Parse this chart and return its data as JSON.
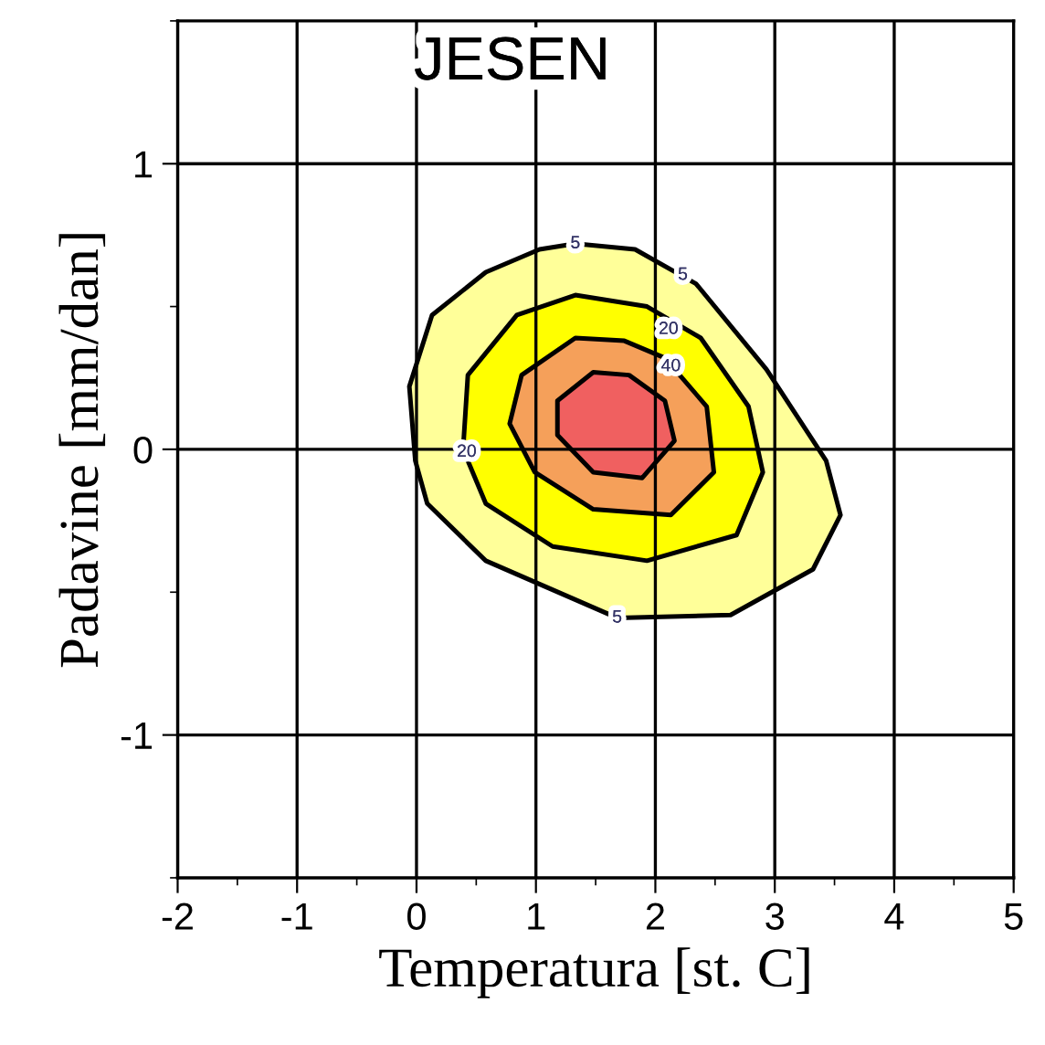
{
  "chart_data": {
    "type": "area",
    "title": "JESEN",
    "xlabel": "Temperatura [st. C]",
    "ylabel": "Padavine [mm/dan]",
    "xlim": [
      -2,
      5
    ],
    "ylim": [
      -1.5,
      1.5
    ],
    "xticks": [
      -2,
      {
        "value": -1.5,
        "label": null
      },
      -1,
      {
        "value": -0.5,
        "label": null
      },
      0,
      {
        "value": 0.5,
        "label": null
      },
      1,
      {
        "value": 1.5,
        "label": null
      },
      2,
      {
        "value": 2.5,
        "label": null
      },
      3,
      {
        "value": 3.5,
        "label": null
      },
      4,
      {
        "value": 4.5,
        "label": null
      },
      5
    ],
    "yticks": [
      {
        "value": -1.5,
        "label": null
      },
      -1,
      {
        "value": -0.5,
        "label": null
      },
      0,
      {
        "value": 0.5,
        "label": null
      },
      1,
      {
        "value": 1.5,
        "label": null
      }
    ],
    "grid": true,
    "series": [
      {
        "color": "#ffff99",
        "x": [
          1.33,
          1.83,
          2.34,
          2.93,
          3.43,
          3.55,
          3.32,
          2.63,
          1.68,
          0.58,
          0.09,
          -0.01,
          -0.06,
          0.13,
          0.58,
          1.03
        ],
        "values": [
          0.72,
          0.7,
          0.58,
          0.28,
          -0.04,
          -0.23,
          -0.42,
          -0.58,
          -0.59,
          -0.39,
          -0.19,
          -0.04,
          0.22,
          0.47,
          0.62,
          0.7
        ]
      },
      {
        "color": "#ffff00",
        "x": [
          1.33,
          1.93,
          2.38,
          2.78,
          2.9,
          2.68,
          1.93,
          1.14,
          0.58,
          0.39,
          0.43,
          0.84
        ],
        "values": [
          0.54,
          0.5,
          0.39,
          0.15,
          -0.08,
          -0.3,
          -0.39,
          -0.34,
          -0.19,
          0.0,
          0.26,
          0.47
        ]
      },
      {
        "color": "#f5a05a",
        "x": [
          1.33,
          1.74,
          2.08,
          2.43,
          2.49,
          2.13,
          1.48,
          0.99,
          0.78,
          0.88
        ],
        "values": [
          0.39,
          0.38,
          0.32,
          0.15,
          -0.08,
          -0.23,
          -0.21,
          -0.08,
          0.09,
          0.26
        ]
      },
      {
        "color": "#f06060",
        "x": [
          1.48,
          1.78,
          2.08,
          2.16,
          1.89,
          1.48,
          1.18,
          1.18
        ],
        "values": [
          0.27,
          0.26,
          0.17,
          0.03,
          -0.1,
          -0.08,
          0.05,
          0.17
        ]
      }
    ],
    "annotations": [
      {
        "text": "5",
        "x": 1.33,
        "y": 0.72
      },
      {
        "text": "5",
        "x": 2.23,
        "y": 0.61
      },
      {
        "text": "20",
        "x": 2.11,
        "y": 0.42
      },
      {
        "text": "40",
        "x": 2.13,
        "y": 0.29
      },
      {
        "text": "20",
        "x": 0.42,
        "y": -0.01
      },
      {
        "text": "5",
        "x": 1.68,
        "y": -0.59
      }
    ]
  }
}
